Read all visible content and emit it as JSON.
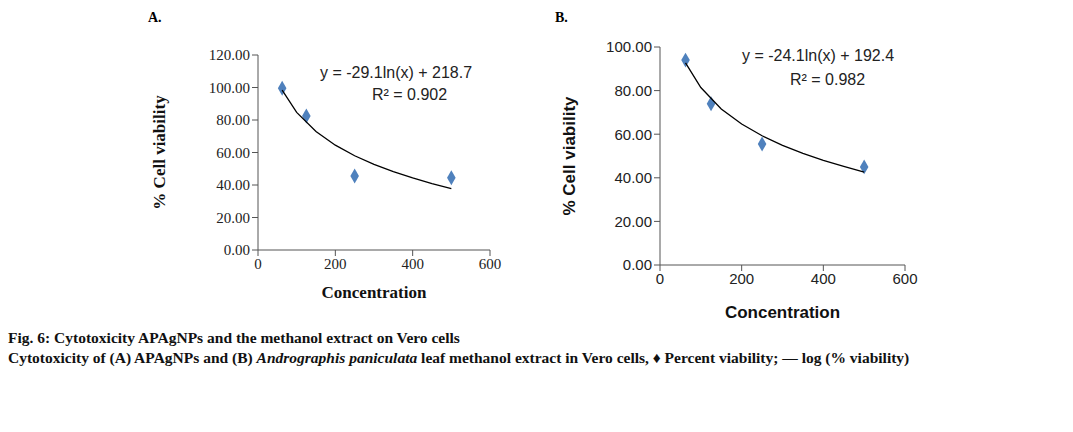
{
  "caption": {
    "title": "Fig. 6: Cytotoxicity APAgNPs and the methanol extract on Vero cells",
    "text": [
      "Cytotoxicity of (A) APAgNPs and (B) ",
      "Andrographis paniculata",
      " leaf methanol extract in Vero cells, ♦ Percent viability; — log (% viability)"
    ]
  },
  "chart_data": [
    {
      "type": "scatter",
      "title": "A.",
      "x_label": "Concentration",
      "y_label": "% Cell viability",
      "annotations": [
        "y = -29.1ln(x) + 218.7",
        "R² = 0.902"
      ],
      "xlim": [
        0,
        600
      ],
      "xticks": [
        0,
        200,
        400,
        600
      ],
      "ylim": [
        0,
        120
      ],
      "yticks": [
        {
          "value": 0,
          "label": "0.00"
        },
        {
          "value": 20,
          "label": "20.00"
        },
        {
          "value": 40,
          "label": "40.00"
        },
        {
          "value": 60,
          "label": "60.00"
        },
        {
          "value": 80,
          "label": "80.00"
        },
        {
          "value": 100,
          "label": "100.00"
        },
        {
          "value": 120,
          "label": "120.00"
        }
      ],
      "grid": false,
      "series": [
        {
          "type": "scatter",
          "marker": "diamond",
          "color": "#4f81bd",
          "x": [
            62.5,
            125,
            250,
            500
          ],
          "values": [
            99.5,
            82.5,
            45.5,
            44.5
          ]
        },
        {
          "type": "line",
          "line_style": "solid",
          "color": "#000000",
          "x": [
            62.5,
            100,
            150,
            200,
            250,
            300,
            350,
            400,
            450,
            500
          ],
          "values": [
            98.4,
            84.7,
            72.9,
            64.5,
            58.0,
            52.7,
            48.2,
            44.4,
            40.9,
            37.8
          ]
        }
      ]
    },
    {
      "type": "scatter",
      "title": "B.",
      "x_label": "Concentration",
      "y_label": "% Cell viability",
      "annotations": [
        "y = -24.1ln(x) + 192.4",
        "R² = 0.982"
      ],
      "xlim": [
        0,
        600
      ],
      "xticks": [
        0,
        200,
        400,
        600
      ],
      "ylim": [
        0,
        100
      ],
      "yticks": [
        {
          "value": 0,
          "label": "0.00"
        },
        {
          "value": 20,
          "label": "20.00"
        },
        {
          "value": 40,
          "label": "40.00"
        },
        {
          "value": 60,
          "label": "60.00"
        },
        {
          "value": 80,
          "label": "80.00"
        },
        {
          "value": 100,
          "label": "100.00"
        }
      ],
      "grid": false,
      "series": [
        {
          "type": "scatter",
          "marker": "diamond",
          "color": "#4f81bd",
          "x": [
            62.5,
            125,
            250,
            500
          ],
          "values": [
            94.0,
            74.0,
            55.5,
            45.0
          ]
        },
        {
          "type": "line",
          "line_style": "solid",
          "color": "#000000",
          "x": [
            62.5,
            100,
            150,
            200,
            250,
            300,
            350,
            400,
            450,
            500
          ],
          "values": [
            92.7,
            81.4,
            71.6,
            64.7,
            59.3,
            54.9,
            51.2,
            48.0,
            45.2,
            42.6
          ]
        }
      ]
    }
  ]
}
